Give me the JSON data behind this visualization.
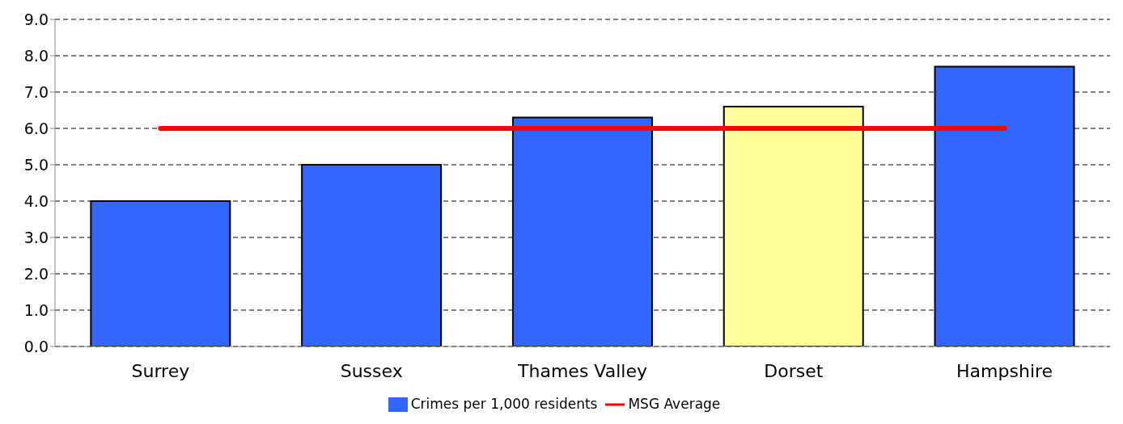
{
  "chart_data": {
    "type": "bar",
    "categories": [
      "Surrey",
      "Sussex",
      "Thames Valley",
      "Dorset",
      "Hampshire"
    ],
    "series": [
      {
        "name": "Crimes per 1,000 residents",
        "color": "#3366ff",
        "colors": [
          "#3366ff",
          "#3366ff",
          "#3366ff",
          "#ffff99",
          "#3366ff"
        ],
        "values": [
          4.0,
          5.0,
          6.3,
          6.6,
          7.7
        ]
      },
      {
        "name": "MSG Average",
        "type": "line",
        "color": "#ff0000",
        "values": [
          6.0,
          6.0,
          6.0,
          6.0,
          6.0
        ]
      }
    ],
    "ylim": [
      0,
      9
    ],
    "yticks": [
      {
        "value": 0,
        "label": "0.0"
      },
      {
        "value": 1,
        "label": "1.0"
      },
      {
        "value": 2,
        "label": "2.0"
      },
      {
        "value": 3,
        "label": "3.0"
      },
      {
        "value": 4,
        "label": "4.0"
      },
      {
        "value": 5,
        "label": "5.0"
      },
      {
        "value": 6,
        "label": "6.0"
      },
      {
        "value": 7,
        "label": "7.0"
      },
      {
        "value": 8,
        "label": "8.0"
      },
      {
        "value": 9,
        "label": "9.0"
      }
    ],
    "grid": "y",
    "legend": "bottom",
    "marker": "none"
  }
}
